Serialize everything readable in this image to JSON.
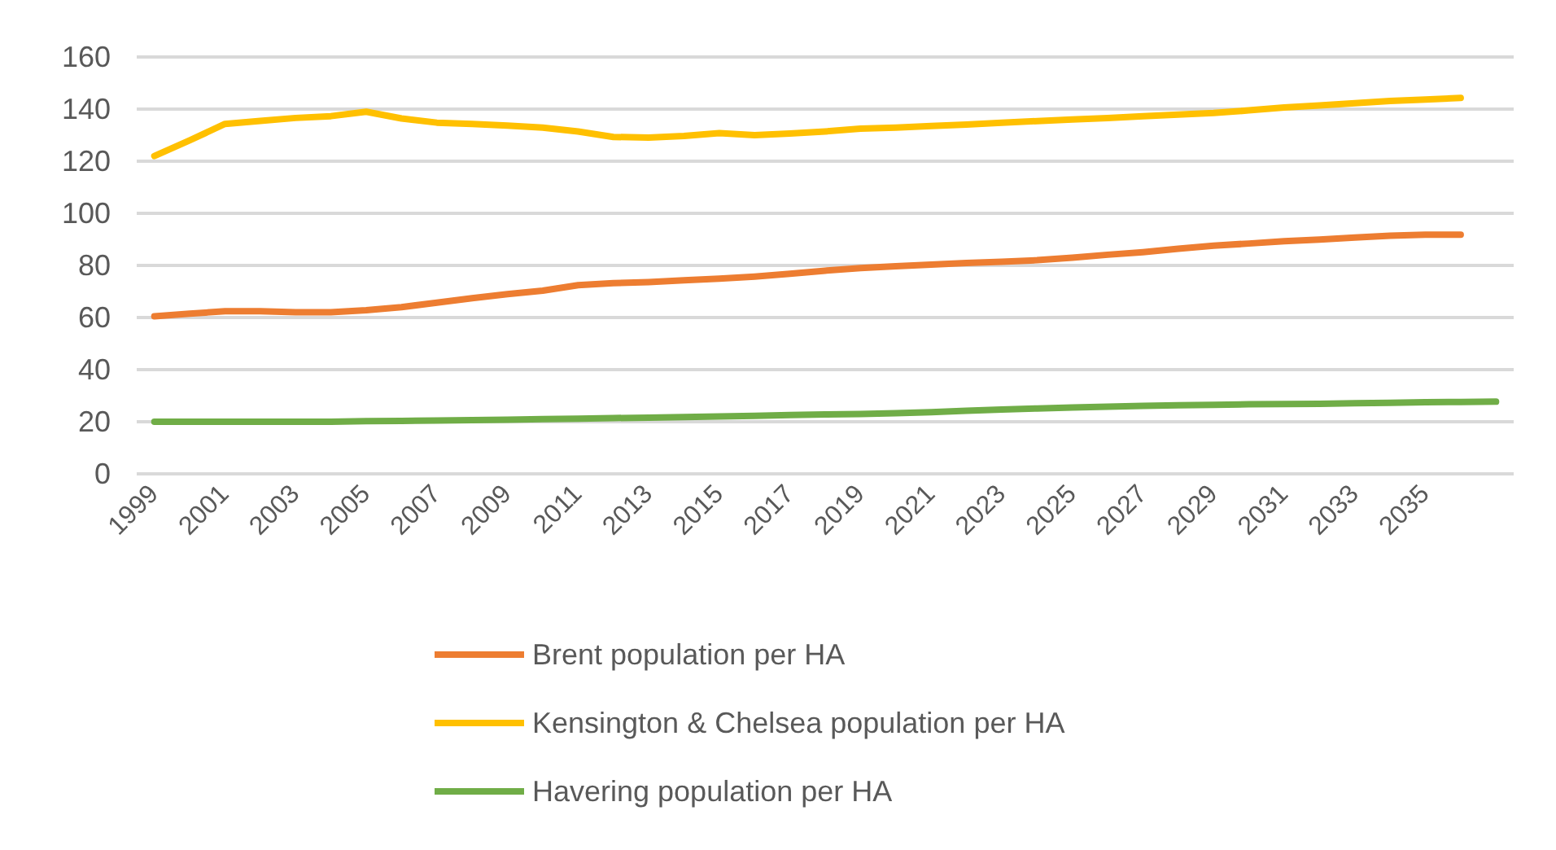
{
  "chart_data": {
    "type": "line",
    "categories": [
      "1999",
      null,
      "2001",
      null,
      "2003",
      null,
      "2005",
      null,
      "2007",
      null,
      "2009",
      null,
      "2011",
      null,
      "2013",
      null,
      "2015",
      null,
      "2017",
      null,
      "2019",
      null,
      "2021",
      null,
      "2023",
      null,
      "2025",
      null,
      "2027",
      null,
      "2029",
      null,
      "2031",
      null,
      "2033",
      null,
      "2035",
      null,
      null
    ],
    "series": [
      {
        "name": "Brent population per HA",
        "color": "#ed7d31",
        "values": [
          60.5,
          61.5,
          62.4,
          62.4,
          62,
          62,
          62.8,
          64,
          65.7,
          67.4,
          69,
          70.3,
          72.4,
          73.2,
          73.6,
          74.3,
          74.9,
          75.7,
          76.8,
          78,
          79,
          79.7,
          80.3,
          80.9,
          81.4,
          82,
          83,
          84.1,
          85.1,
          86.4,
          87.6,
          88.4,
          89.3,
          89.9,
          90.7,
          91.4,
          91.8,
          91.8,
          null
        ]
      },
      {
        "name": "Kensington & Chelsea population per HA",
        "color": "#ffc000",
        "values": [
          122,
          128,
          134.3,
          135.5,
          136.6,
          137.3,
          139,
          136.4,
          134.8,
          134.3,
          133.7,
          132.9,
          131.4,
          129.3,
          129.1,
          129.7,
          130.8,
          130,
          130.6,
          131.4,
          132.5,
          132.9,
          133.5,
          134.1,
          134.8,
          135.4,
          136,
          136.6,
          137.3,
          137.9,
          138.5,
          139.5,
          140.6,
          141.4,
          142.3,
          143.1,
          143.7,
          144.3,
          null
        ]
      },
      {
        "name": "Havering population per HA",
        "color": "#70ad47",
        "values": [
          20,
          20,
          20,
          20,
          20,
          20,
          20.2,
          20.3,
          20.5,
          20.6,
          20.8,
          21,
          21.2,
          21.4,
          21.6,
          21.8,
          22,
          22.3,
          22.6,
          22.8,
          23,
          23.3,
          23.7,
          24.2,
          24.7,
          25.1,
          25.5,
          25.8,
          26.1,
          26.3,
          26.5,
          26.7,
          26.8,
          26.9,
          27.1,
          27.3,
          27.5,
          27.6,
          27.7
        ]
      }
    ],
    "ylim": [
      0,
      160
    ],
    "yticks": [
      0,
      20,
      40,
      60,
      80,
      100,
      120,
      140,
      160
    ],
    "grid": "y",
    "legend": "bottom",
    "marker": "none",
    "line_style": "solid"
  }
}
